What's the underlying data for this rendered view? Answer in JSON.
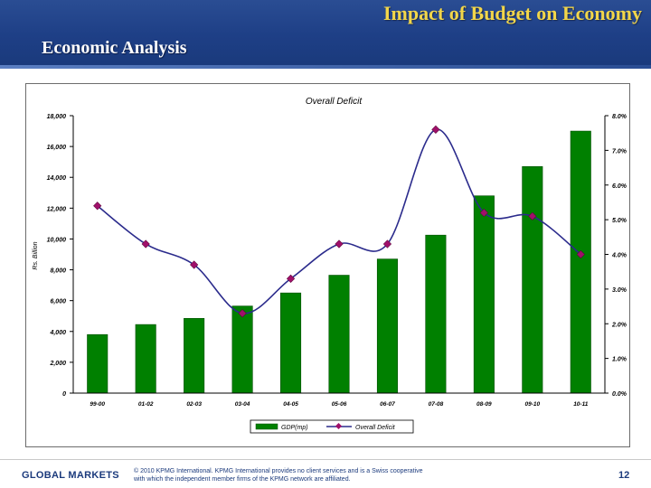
{
  "header": {
    "title": "Impact of Budget on Economy",
    "subtitle": "Economic Analysis"
  },
  "footer": {
    "brand": "GLOBAL MARKETS",
    "note_line1": "© 2010 KPMG International. KPMG International provides no client services and is a Swiss cooperative",
    "note_line2": "with which the independent member firms of the KPMG network are affiliated.",
    "page_number": "12"
  },
  "colors": {
    "bar": "#008000",
    "bar_border": "#004d00",
    "line": "#2b2b8c",
    "marker": "#a0106a"
  },
  "chart_data": {
    "type": "bar",
    "title": "Overall Deficit",
    "ylabel": "Rs. Billion",
    "categories": [
      "99-00",
      "01-02",
      "02-03",
      "03-04",
      "04-05",
      "05-06",
      "06-07",
      "07-08",
      "08-09",
      "09-10",
      "10-11"
    ],
    "ylim": [
      0,
      18000
    ],
    "yticks": [
      "0",
      "2,000",
      "4,000",
      "6,000",
      "8,000",
      "10,000",
      "12,000",
      "14,000",
      "16,000",
      "18,000"
    ],
    "y2lim": [
      0,
      8
    ],
    "y2ticks": [
      "0.0%",
      "1.0%",
      "2.0%",
      "3.0%",
      "4.0%",
      "5.0%",
      "6.0%",
      "7.0%",
      "8.0%"
    ],
    "series": [
      {
        "name": "GDP(mp)",
        "type": "bar",
        "values": [
          3800,
          4450,
          4850,
          5650,
          6500,
          7650,
          8700,
          10250,
          12800,
          14700,
          17000
        ]
      },
      {
        "name": "Overall Deficit",
        "type": "line",
        "axis": "right",
        "values": [
          5.4,
          4.3,
          3.7,
          2.3,
          3.3,
          4.3,
          4.3,
          7.6,
          5.2,
          5.1,
          4.0
        ]
      }
    ],
    "legend": "bottom-center"
  }
}
